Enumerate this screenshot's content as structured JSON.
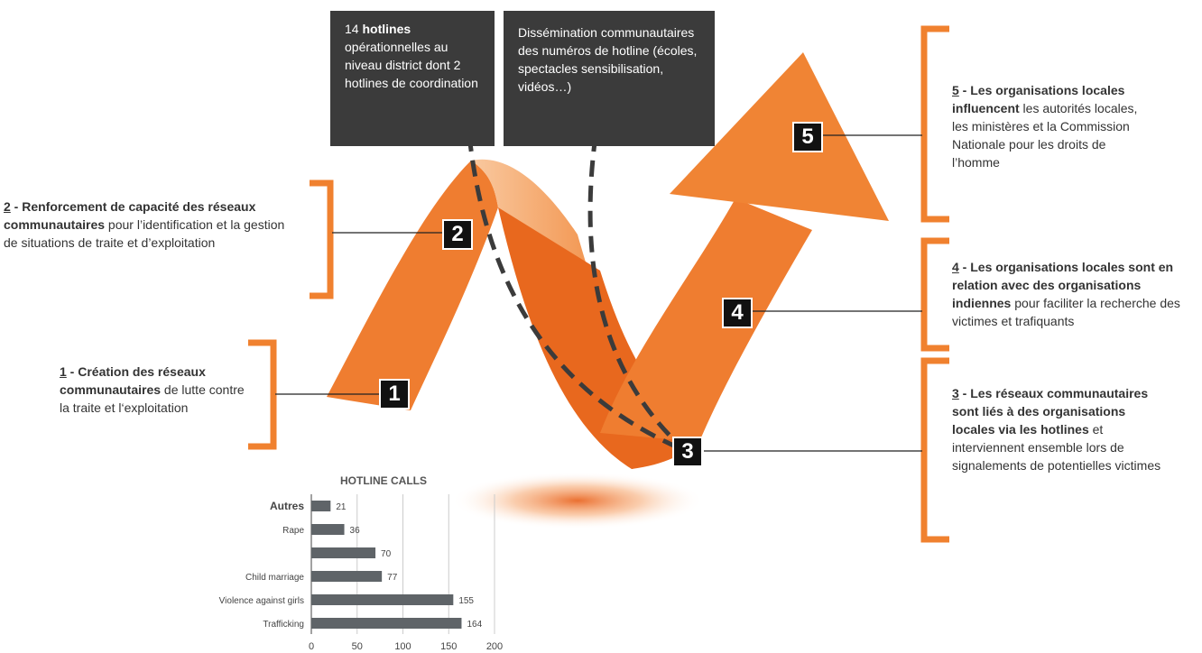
{
  "boxes": [
    {
      "lead": "14 ",
      "bold": "hotlines",
      "rest": " opérationnelles au niveau district dont 2 hotlines de coordination"
    },
    {
      "lead": "Dissémination communautaires des numéros de hotline (écoles, spectacles sensibilisation, vidéos…)",
      "bold": "",
      "rest": ""
    }
  ],
  "steps": [
    {
      "num": "1",
      "lead": " - Création des réseaux communautaires",
      "rest": " de lutte contre la traite et l‘exploitation"
    },
    {
      "num": "2",
      "lead": " - Renforcement de capacité des réseaux communautaires",
      "rest": " pour l’identification et la gestion de situations de traite et d’exploitation"
    },
    {
      "num": "3",
      "lead": " - Les réseaux communautaires sont liés à des organisations locales via les hotlines",
      "rest": " et interviennent ensemble lors de signalements de potentielles victimes"
    },
    {
      "num": "4",
      "lead": " - Les organisations locales sont en relation avec des organisations indiennes",
      "rest": " pour faciliter la recherche des victimes et trafiquants"
    },
    {
      "num": "5",
      "lead": " - Les organisations locales influencent",
      "rest": " les autorités locales, les ministères et la Commission Nationale pour les droits de l’homme"
    }
  ],
  "chart_data": {
    "type": "bar",
    "orientation": "horizontal",
    "title": "HOTLINE CALLS",
    "categories": [
      "Autres",
      "Rape",
      null,
      "Child marriage",
      "Violence against girls",
      "Trafficking"
    ],
    "values": [
      21,
      36,
      70,
      77,
      155,
      164
    ],
    "color": "#5f6468",
    "xlim": [
      0,
      200
    ],
    "xticks": [
      0,
      50,
      100,
      150,
      200
    ],
    "grid": true
  }
}
